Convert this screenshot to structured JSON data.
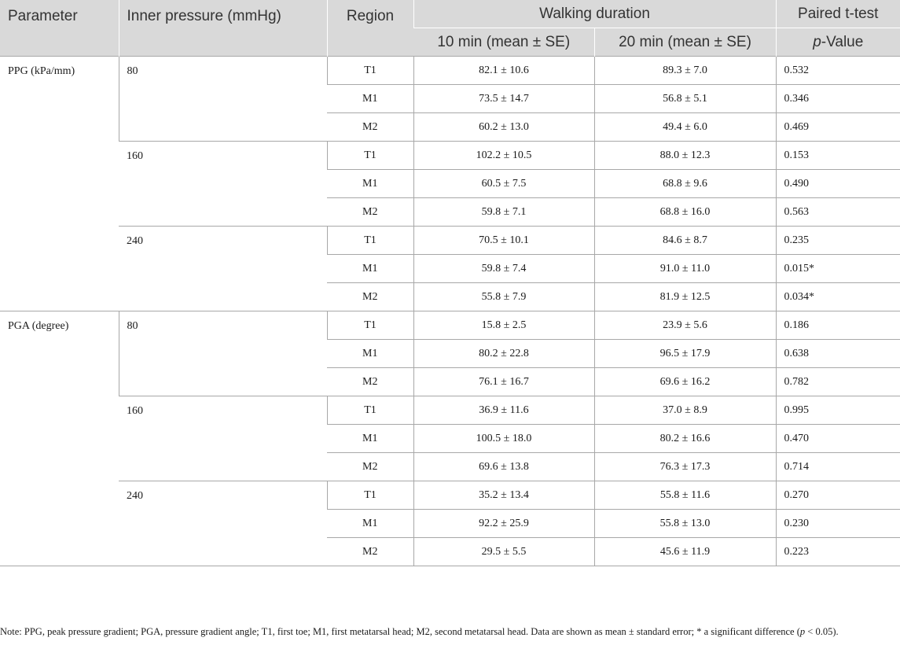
{
  "table": {
    "headers": {
      "parameter": "Parameter",
      "inner_pressure": "Inner pressure (mmHg)",
      "region": "Region",
      "walking_duration": "Walking duration",
      "paired_ttest": "Paired t-test",
      "ten_min": "10 min (mean ± SE)",
      "twenty_min": "20 min (mean ± SE)",
      "p_italic": "p",
      "p_rest": "-Value"
    },
    "groups": [
      {
        "parameter": "PPG (kPa/mm)",
        "pressures": [
          {
            "pressure": "80",
            "rows": [
              {
                "region": "T1",
                "ten_min": "82.1 ± 10.6",
                "twenty_min": "89.3 ± 7.0",
                "p": "0.532"
              },
              {
                "region": "M1",
                "ten_min": "73.5 ± 14.7",
                "twenty_min": "56.8 ± 5.1",
                "p": "0.346"
              },
              {
                "region": "M2",
                "ten_min": "60.2 ± 13.0",
                "twenty_min": "49.4 ± 6.0",
                "p": "0.469"
              }
            ]
          },
          {
            "pressure": "160",
            "rows": [
              {
                "region": "T1",
                "ten_min": "102.2 ± 10.5",
                "twenty_min": "88.0 ± 12.3",
                "p": "0.153"
              },
              {
                "region": "M1",
                "ten_min": "60.5 ± 7.5",
                "twenty_min": "68.8 ± 9.6",
                "p": "0.490"
              },
              {
                "region": "M2",
                "ten_min": "59.8 ± 7.1",
                "twenty_min": "68.8 ± 16.0",
                "p": "0.563"
              }
            ]
          },
          {
            "pressure": "240",
            "rows": [
              {
                "region": "T1",
                "ten_min": "70.5 ± 10.1",
                "twenty_min": "84.6 ± 8.7",
                "p": "0.235"
              },
              {
                "region": "M1",
                "ten_min": "59.8 ± 7.4",
                "twenty_min": "91.0 ± 11.0",
                "p": "0.015*"
              },
              {
                "region": "M2",
                "ten_min": "55.8 ± 7.9",
                "twenty_min": "81.9 ± 12.5",
                "p": "0.034*"
              }
            ]
          }
        ]
      },
      {
        "parameter": "PGA (degree)",
        "pressures": [
          {
            "pressure": "80",
            "rows": [
              {
                "region": "T1",
                "ten_min": "15.8 ± 2.5",
                "twenty_min": "23.9 ± 5.6",
                "p": "0.186"
              },
              {
                "region": "M1",
                "ten_min": "80.2 ± 22.8",
                "twenty_min": "96.5 ± 17.9",
                "p": "0.638"
              },
              {
                "region": "M2",
                "ten_min": "76.1 ± 16.7",
                "twenty_min": "69.6 ± 16.2",
                "p": "0.782"
              }
            ]
          },
          {
            "pressure": "160",
            "rows": [
              {
                "region": "T1",
                "ten_min": "36.9 ± 11.6",
                "twenty_min": "37.0 ± 8.9",
                "p": "0.995"
              },
              {
                "region": "M1",
                "ten_min": "100.5 ± 18.0",
                "twenty_min": "80.2 ± 16.6",
                "p": "0.470"
              },
              {
                "region": "M2",
                "ten_min": "69.6 ± 13.8",
                "twenty_min": "76.3 ± 17.3",
                "p": "0.714"
              }
            ]
          },
          {
            "pressure": "240",
            "rows": [
              {
                "region": "T1",
                "ten_min": "35.2 ± 13.4",
                "twenty_min": "55.8 ± 11.6",
                "p": "0.270"
              },
              {
                "region": "M1",
                "ten_min": "92.2 ± 25.9",
                "twenty_min": "55.8 ± 13.0",
                "p": "0.230"
              },
              {
                "region": "M2",
                "ten_min": "29.5 ± 5.5",
                "twenty_min": "45.6 ± 11.9",
                "p": "0.223"
              }
            ]
          }
        ]
      }
    ]
  },
  "note": {
    "text1": "Note: PPG, peak pressure gradient; PGA, pressure gradient angle; T1, first toe; M1, first metatarsal head; M2, second metatarsal head. Data are shown as mean ± standard error; * a significant difference (",
    "p_italic": "p",
    "text2": " < 0.05)."
  }
}
